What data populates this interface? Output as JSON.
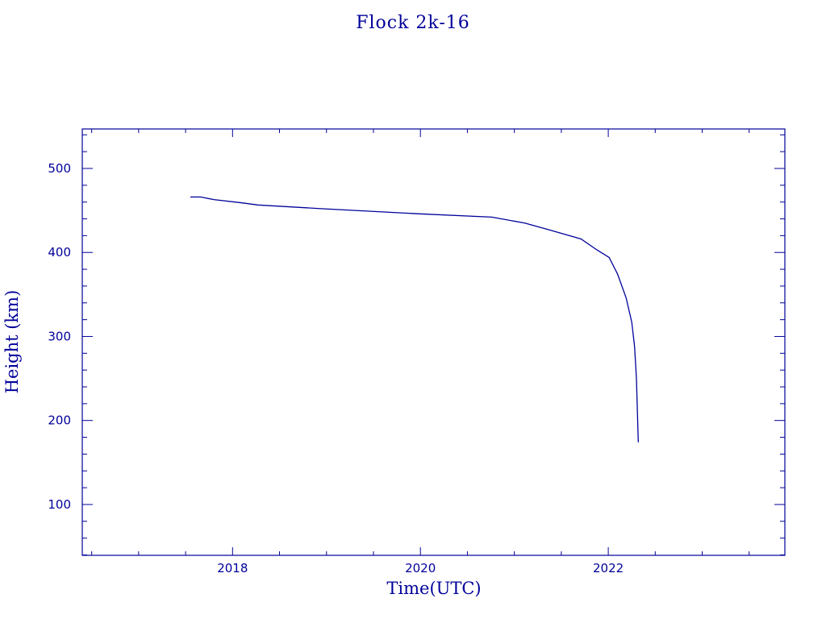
{
  "chart_data": {
    "type": "line",
    "title": "Flock 2k-16",
    "xlabel": "Time(UTC)",
    "ylabel": "Height (km)",
    "xlim": [
      2016.4,
      2023.88
    ],
    "ylim": [
      39.5,
      547
    ],
    "xticks": [
      2018,
      2020,
      2022
    ],
    "xtick_labels": [
      "2018",
      "2020",
      "2022"
    ],
    "x_minor_step": 0.5,
    "yticks": [
      100,
      200,
      300,
      400,
      500
    ],
    "ytick_labels": [
      "100",
      "200",
      "300",
      "400",
      "500"
    ],
    "y_minor_step": 20,
    "grid": false,
    "color": "#00009a",
    "series": [
      {
        "x": [
          2017.55,
          2017.66,
          2017.8,
          2018.1,
          2018.27,
          2018.96,
          2019.99,
          2020.76,
          2021.11,
          2021.37,
          2021.71,
          2021.88,
          2022.01,
          2022.1,
          2022.19,
          2022.25,
          2022.28,
          2022.3,
          2022.32
        ],
        "y": [
          466,
          466,
          463,
          459,
          456.5,
          452,
          446,
          442,
          435,
          427,
          416,
          403,
          394,
          374,
          346,
          317,
          288,
          250,
          174
        ]
      }
    ]
  }
}
